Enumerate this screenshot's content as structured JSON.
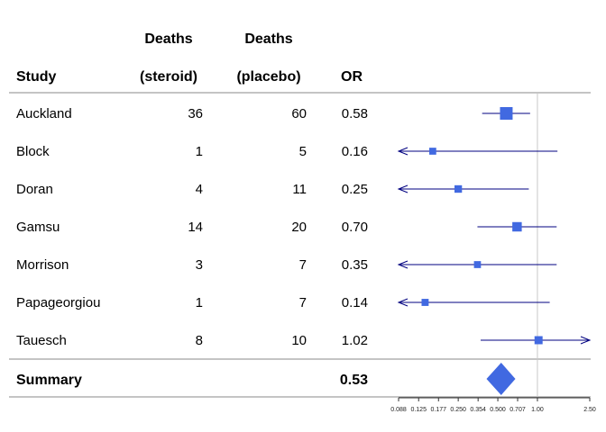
{
  "table": {
    "header_top": [
      "",
      "Deaths",
      "Deaths",
      ""
    ],
    "header_bottom": [
      "Study",
      "(steroid)",
      "(placebo)",
      "OR"
    ]
  },
  "chart_data": {
    "type": "forest",
    "x_scale": "log",
    "xlim": [
      0.088,
      2.5
    ],
    "x_ticks": [
      0.088,
      0.125,
      0.177,
      0.25,
      0.354,
      0.5,
      0.707,
      1.0,
      2.5
    ],
    "x_tick_labels": [
      "0.088",
      "0.125",
      "0.177",
      "0.250",
      "0.354",
      "0.500",
      "0.707",
      "1.00",
      "2.50"
    ],
    "reference_line": 1.0,
    "grid": false,
    "studies": [
      {
        "name": "Auckland",
        "deaths_steroid": "36",
        "deaths_placebo": "60",
        "or_label": "0.58",
        "or": 0.58,
        "ci_lower": 0.38,
        "ci_upper": 0.88,
        "arrow_left": false,
        "arrow_right": false
      },
      {
        "name": "Block",
        "deaths_steroid": "1",
        "deaths_placebo": "5",
        "or_label": "0.16",
        "or": 0.16,
        "ci_lower": 0.088,
        "ci_upper": 1.42,
        "arrow_left": true,
        "arrow_right": false
      },
      {
        "name": "Doran",
        "deaths_steroid": "4",
        "deaths_placebo": "11",
        "or_label": "0.25",
        "or": 0.25,
        "ci_lower": 0.088,
        "ci_upper": 0.86,
        "arrow_left": true,
        "arrow_right": false
      },
      {
        "name": "Gamsu",
        "deaths_steroid": "14",
        "deaths_placebo": "20",
        "or_label": "0.70",
        "or": 0.7,
        "ci_lower": 0.35,
        "ci_upper": 1.4,
        "arrow_left": false,
        "arrow_right": false
      },
      {
        "name": "Morrison",
        "deaths_steroid": "3",
        "deaths_placebo": "7",
        "or_label": "0.35",
        "or": 0.35,
        "ci_lower": 0.088,
        "ci_upper": 1.4,
        "arrow_left": true,
        "arrow_right": false
      },
      {
        "name": "Papageorgiou",
        "deaths_steroid": "1",
        "deaths_placebo": "7",
        "or_label": "0.14",
        "or": 0.14,
        "ci_lower": 0.088,
        "ci_upper": 1.24,
        "arrow_left": true,
        "arrow_right": false
      },
      {
        "name": "Tauesch",
        "deaths_steroid": "8",
        "deaths_placebo": "10",
        "or_label": "1.02",
        "or": 1.02,
        "ci_lower": 0.37,
        "ci_upper": 2.5,
        "arrow_left": false,
        "arrow_right": true
      }
    ],
    "summary": {
      "name": "Summary",
      "or_label": "0.53",
      "or": 0.53,
      "ci_lower": 0.41,
      "ci_upper": 0.68
    },
    "colors": {
      "box": "#4169e1",
      "ci_line": "#000080",
      "ref_line": "#c8c8c8",
      "rule": "#888888",
      "axis": "#333333"
    }
  }
}
